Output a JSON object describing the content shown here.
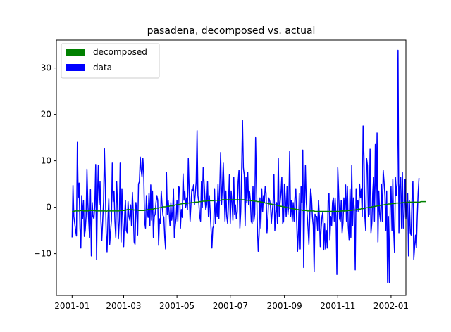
{
  "chart_data": {
    "type": "line",
    "title": "pasadena, decomposed vs. actual",
    "xlabel": "",
    "ylabel": "",
    "x_start": "2001-01-01",
    "x_end": "2001-12-31",
    "xlim": [
      "2000-12-14",
      "2002-01-18"
    ],
    "ylim": [
      -19,
      36
    ],
    "grid": false,
    "legend_position": "top-left",
    "x_ticks": [
      {
        "date": "2001-01-01",
        "label": "2001-01"
      },
      {
        "date": "2001-03-01",
        "label": "2001-03"
      },
      {
        "date": "2001-05-01",
        "label": "2001-05"
      },
      {
        "date": "2001-07-01",
        "label": "2001-07"
      },
      {
        "date": "2001-09-01",
        "label": "2001-09"
      },
      {
        "date": "2001-11-01",
        "label": "2001-11"
      },
      {
        "date": "2002-01-01",
        "label": "2002-01"
      }
    ],
    "y_ticks": [
      {
        "value": -10,
        "label": "−10"
      },
      {
        "value": 0,
        "label": "0"
      },
      {
        "value": 10,
        "label": "10"
      },
      {
        "value": 20,
        "label": "20"
      },
      {
        "value": 30,
        "label": "30"
      }
    ],
    "series": [
      {
        "name": "data",
        "color": "#0000ff",
        "values": [
          -6.5,
          4.7,
          -2.0,
          -3.5,
          -5.0,
          -6.2,
          14.0,
          2.0,
          5.2,
          -4.5,
          -8.8,
          2.5,
          -2.5,
          1.5,
          -6.3,
          -5.0,
          -2.0,
          8.2,
          1.0,
          -3.0,
          -6.5,
          3.8,
          -10.5,
          1.0,
          -2.0,
          -2.5,
          0.5,
          9.2,
          -11.3,
          2.0,
          9.0,
          0.5,
          5.5,
          -3.0,
          -7.2,
          -3.0,
          1.2,
          12.6,
          4.5,
          -5.5,
          -9.6,
          -2.5,
          1.8,
          -8.0,
          -5.2,
          -2.8,
          9.5,
          1.2,
          3.5,
          -3.0,
          -6.5,
          5.5,
          0.5,
          -6.8,
          -3.0,
          9.5,
          -7.5,
          4.0,
          -3.2,
          -8.5,
          -2.5,
          1.5,
          -5.0,
          -5.5,
          1.2,
          -2.0,
          -2.8,
          0.5,
          -4.0,
          3.2,
          -1.0,
          -7.5,
          -8.0,
          1.0,
          -1.0,
          -6.0,
          5.0,
          5.5,
          10.8,
          8.0,
          6.5,
          10.5,
          7.0,
          -3.2,
          -4.5,
          2.5,
          -1.0,
          -2.2,
          3.0,
          -4.0,
          4.8,
          -2.8,
          3.5,
          -6.5,
          -2.0,
          -1.5,
          1.0,
          2.5,
          1.5,
          -8.2,
          -2.5,
          -3.5,
          3.5,
          0.5,
          -1.8,
          -2.2,
          -6.5,
          -9.0,
          7.5,
          -1.5,
          1.5,
          -1.0,
          -4.0,
          1.0,
          -2.8,
          -1.0,
          4.0,
          -6.5,
          -4.0,
          -2.5,
          1.5,
          -3.0,
          4.5,
          4.0,
          -4.5,
          -0.5,
          -2.2,
          7.2,
          1.5,
          3.5,
          0.0,
          2.0,
          -0.5,
          10.5,
          3.5,
          -3.0,
          0.5,
          3.8,
          3.5,
          4.8,
          0.5,
          3.0,
          5.5,
          16.5,
          2.5,
          1.0,
          -2.0,
          -3.0,
          5.5,
          0.0,
          8.5,
          5.5,
          2.0,
          -0.5,
          0.5,
          5.5,
          -2.0,
          2.5,
          -1.0,
          -4.5,
          -8.8,
          -4.5,
          -4.0,
          4.0,
          -3.5,
          1.0,
          -2.0,
          5.0,
          -2.5,
          4.5,
          11.8,
          0.5,
          4.5,
          9.5,
          3.5,
          -3.0,
          3.5,
          -2.0,
          -3.5,
          1.0,
          7.0,
          -3.5,
          3.5,
          1.0,
          -2.8,
          6.5,
          -1.5,
          0.5,
          -2.5,
          -1.0,
          5.5,
          8.0,
          -4.5,
          -1.0,
          7.5,
          18.7,
          8.5,
          7.0,
          -4.0,
          6.5,
          1.0,
          7.5,
          0.5,
          3.5,
          1.5,
          -3.0,
          -3.5,
          4.5,
          -3.0,
          -1.5,
          15.0,
          4.5,
          -4.0,
          -9.5,
          -6.0,
          2.0,
          -4.5,
          4.0,
          -1.0,
          2.5,
          1.0,
          4.5,
          3.0,
          -5.5,
          -2.5,
          2.0,
          1.5,
          0.5,
          -3.5,
          -1.0,
          1.0,
          7.0,
          -5.0,
          -1.5,
          1.0,
          -3.5,
          10.5,
          -2.0,
          1.0,
          3.0,
          6.5,
          -3.5,
          -3.0,
          5.0,
          2.0,
          -2.0,
          4.5,
          -1.5,
          0.5,
          12.0,
          -2.0,
          1.5,
          -3.0,
          1.0,
          -3.0,
          2.0,
          4.0,
          -3.0,
          -9.5,
          -5.0,
          3.0,
          -9.0,
          4.5,
          1.0,
          12.3,
          -13.0,
          0.5,
          9.0,
          1.0,
          -1.5,
          -4.5,
          -8.0,
          -2.0,
          4.0,
          2.0,
          -2.0,
          -4.0,
          -13.8,
          -1.5,
          -2.0,
          -2.0,
          -5.0,
          1.5,
          -2.0,
          -8.5,
          -4.5,
          -2.0,
          -1.0,
          -9.2,
          -3.5,
          -9.0,
          -5.0,
          -8.8,
          1.5,
          3.0,
          -7.0,
          -2.0,
          -4.0,
          1.0,
          2.0,
          -3.0,
          2.0,
          -2.0,
          -14.5,
          8.5,
          3.5,
          -2.5,
          -3.0,
          1.5,
          -5.5,
          -3.5,
          2.0,
          -1.0,
          4.8,
          -3.0,
          4.5,
          -4.0,
          -7.0,
          4.0,
          -6.5,
          9.0,
          -4.0,
          2.0,
          -0.5,
          -13.5,
          4.0,
          -1.0,
          1.5,
          -1.0,
          5.0,
          2.0,
          4.0,
          -2.0,
          17.5,
          11.0,
          -2.0,
          -5.0,
          10.5,
          9.0,
          -2.0,
          -1.5,
          12.5,
          -5.5,
          -3.5,
          3.0,
          6.5,
          -3.0,
          13.5,
          0.5,
          16.0,
          -7.5,
          3.5,
          -1.5,
          -3.0,
          5.0,
          -3.0,
          8.0,
          5.5,
          2.5,
          -5.0,
          3.5,
          -16.2,
          -2.0,
          -16.2,
          0.0,
          4.5,
          -5.0,
          6.0,
          -5.0,
          -9.8,
          6.5,
          2.5,
          5.0,
          33.8,
          -5.5,
          4.5,
          6.5,
          -4.5,
          7.5,
          -4.5,
          -2.0,
          6.0,
          -2.5,
          0.5,
          3.0,
          -10.5,
          1.5,
          -5.5,
          -6.0,
          2.0,
          5.5,
          -11.2,
          -8.5,
          -6.0,
          -8.7,
          -2.0,
          3.0,
          6.3
        ]
      },
      {
        "name": "decomposed",
        "color": "#008000",
        "values": [
          -1.0,
          -0.9,
          -0.9,
          -0.8,
          -0.8,
          -0.8,
          -0.8,
          -0.8,
          -0.8,
          -0.8,
          -0.7,
          -0.7,
          -0.7,
          -0.8,
          -0.8,
          -0.8,
          -0.8,
          -0.8,
          -0.8,
          -0.8,
          -0.7,
          -0.7,
          -0.7,
          -0.7,
          -0.7,
          -0.7,
          -0.7,
          -0.8,
          -0.8,
          -0.8,
          -0.8,
          -0.8,
          -0.8,
          -0.8,
          -0.8,
          -0.8,
          -0.8,
          -0.8,
          -0.8,
          -0.9,
          -0.8,
          -0.8,
          -0.8,
          -0.8,
          -0.8,
          -0.8,
          -0.8,
          -0.8,
          -0.8,
          -0.8,
          -0.8,
          -0.8,
          -0.8,
          -0.8,
          -0.8,
          -0.7,
          -0.7,
          -0.7,
          -0.7,
          -0.7,
          -0.7,
          -0.7,
          -0.6,
          -0.5,
          -0.5,
          -0.5,
          -0.5,
          -0.5,
          -0.5,
          -0.5,
          -0.6,
          -0.6,
          -0.6,
          -0.6,
          -0.6,
          -0.6,
          -0.7,
          -0.7,
          -0.7,
          -0.7,
          -0.7,
          -0.7,
          -0.7,
          -0.7,
          -0.6,
          -0.6,
          -0.5,
          -0.5,
          -0.5,
          -0.5,
          -0.4,
          -0.4,
          -0.4,
          -0.4,
          -0.3,
          -0.3,
          -0.2,
          -0.2,
          -0.2,
          -0.2,
          -0.1,
          -0.1,
          0.0,
          0.0,
          0.1,
          0.1,
          0.1,
          0.1,
          0.2,
          0.2,
          0.2,
          0.2,
          0.3,
          0.3,
          0.3,
          0.3,
          0.4,
          0.4,
          0.5,
          0.5,
          0.5,
          0.6,
          0.6,
          0.6,
          0.7,
          0.7,
          0.8,
          0.8,
          0.8,
          0.8,
          0.8,
          0.8,
          0.9,
          0.9,
          0.9,
          0.9,
          1.0,
          1.0,
          1.0,
          1.0,
          1.1,
          1.1,
          1.1,
          1.1,
          1.1,
          1.2,
          1.2,
          1.2,
          1.2,
          1.3,
          1.3,
          1.3,
          1.3,
          1.3,
          1.3,
          1.4,
          1.4,
          1.4,
          1.4,
          1.4,
          1.4,
          1.4,
          1.4,
          1.5,
          1.5,
          1.5,
          1.5,
          1.5,
          1.5,
          1.5,
          1.5,
          1.6,
          1.6,
          1.6,
          1.6,
          1.6,
          1.6,
          1.6,
          1.6,
          1.6,
          1.6,
          1.6,
          1.6,
          1.6,
          1.6,
          1.6,
          1.6,
          1.6,
          1.6,
          1.6,
          1.6,
          1.6,
          1.6,
          1.6,
          1.6,
          1.6,
          1.6,
          1.6,
          1.5,
          1.5,
          1.5,
          1.5,
          1.5,
          1.5,
          1.4,
          1.4,
          1.4,
          1.4,
          1.3,
          1.3,
          1.3,
          1.3,
          1.2,
          1.2,
          1.2,
          1.2,
          1.1,
          1.1,
          1.1,
          1.0,
          1.0,
          0.9,
          0.9,
          0.9,
          0.8,
          0.8,
          0.7,
          0.7,
          0.7,
          0.6,
          0.6,
          0.5,
          0.5,
          0.5,
          0.4,
          0.4,
          0.3,
          0.3,
          0.3,
          0.2,
          0.2,
          0.1,
          0.1,
          0.1,
          0.0,
          0.0,
          -0.1,
          -0.1,
          -0.1,
          -0.2,
          -0.2,
          -0.3,
          -0.3,
          -0.3,
          -0.4,
          -0.4,
          -0.4,
          -0.5,
          -0.5,
          -0.5,
          -0.6,
          -0.6,
          -0.6,
          -0.6,
          -0.7,
          -0.7,
          -0.7,
          -0.7,
          -0.7,
          -0.8,
          -0.8,
          -0.8,
          -0.8,
          -0.8,
          -0.8,
          -0.8,
          -0.8,
          -0.8,
          -0.9,
          -0.9,
          -0.9,
          -0.9,
          -0.9,
          -0.9,
          -0.9,
          -0.9,
          -0.9,
          -0.9,
          -0.9,
          -0.9,
          -0.9,
          -0.9,
          -0.9,
          -0.9,
          -0.9,
          -0.9,
          -0.9,
          -0.9,
          -0.9,
          -0.9,
          -0.9,
          -0.9,
          -0.9,
          -0.9,
          -0.9,
          -0.9,
          -0.9,
          -0.9,
          -0.8,
          -0.8,
          -0.8,
          -0.8,
          -0.8,
          -0.8,
          -0.8,
          -0.8,
          -0.7,
          -0.7,
          -0.7,
          -0.7,
          -0.7,
          -0.6,
          -0.6,
          -0.6,
          -0.6,
          -0.5,
          -0.5,
          -0.5,
          -0.4,
          -0.4,
          -0.4,
          -0.3,
          -0.3,
          -0.3,
          -0.2,
          -0.2,
          -0.2,
          -0.1,
          -0.1,
          -0.1,
          0.0,
          0.0,
          0.0,
          0.1,
          0.1,
          0.1,
          0.2,
          0.2,
          0.2,
          0.3,
          0.3,
          0.3,
          0.4,
          0.4,
          0.4,
          0.5,
          0.5,
          0.5,
          0.6,
          0.6,
          0.6,
          0.6,
          0.7,
          0.7,
          0.7,
          0.7,
          0.8,
          0.8,
          0.8,
          0.8,
          0.8,
          0.9,
          0.9,
          0.9,
          0.9,
          0.9,
          0.9,
          1.0,
          1.0,
          1.0,
          1.0,
          1.0,
          1.0,
          1.0,
          1.1,
          1.1,
          1.1,
          1.1,
          1.1,
          1.1,
          1.1,
          1.1,
          1.1,
          1.1,
          1.1,
          1.1,
          1.1,
          1.1,
          1.1,
          1.2,
          1.2,
          1.2,
          1.2,
          1.2,
          1.2,
          1.2
        ]
      }
    ],
    "legend": [
      {
        "label": "decomposed",
        "color": "#008000"
      },
      {
        "label": "data",
        "color": "#0000ff"
      }
    ]
  }
}
